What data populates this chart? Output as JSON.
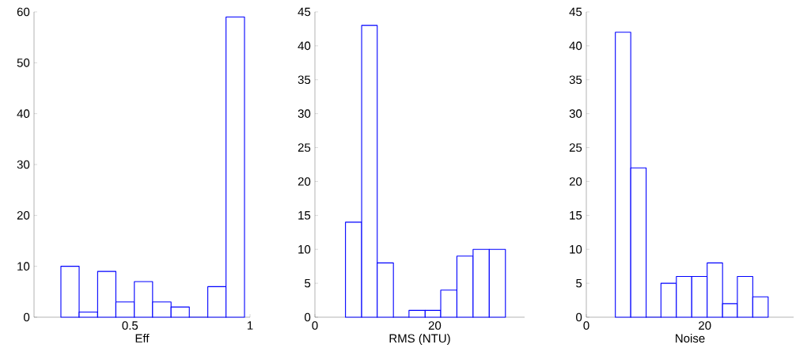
{
  "chart_data": [
    {
      "type": "histogram",
      "xlabel": "Eff",
      "color": "#0000ff",
      "bins": [
        0.212,
        0.288,
        0.365,
        0.441,
        0.518,
        0.594,
        0.671,
        0.747,
        0.824,
        0.9,
        0.977
      ],
      "values": [
        10,
        1,
        9,
        3,
        7,
        3,
        2,
        0,
        6,
        59
      ],
      "xlim": [
        0.1,
        1
      ],
      "xticks": [
        0.5,
        1
      ],
      "ylim": [
        0,
        60
      ],
      "yticks": [
        0,
        10,
        20,
        30,
        40,
        50,
        60
      ]
    },
    {
      "type": "histogram",
      "xlabel": "RMS (NTU)",
      "color": "#0000ff",
      "bins": [
        5.1,
        7.8,
        10.4,
        13.1,
        15.7,
        18.4,
        21.0,
        23.7,
        26.4,
        29.1,
        31.8
      ],
      "values": [
        14,
        43,
        8,
        0,
        1,
        1,
        4,
        9,
        10,
        10
      ],
      "xlim": [
        0,
        35
      ],
      "xticks": [
        0,
        20
      ],
      "ylim": [
        0,
        45
      ],
      "yticks": [
        0,
        5,
        10,
        15,
        20,
        25,
        30,
        35,
        40,
        45
      ]
    },
    {
      "type": "histogram",
      "xlabel": "Noise",
      "color": "#0000ff",
      "bins": [
        4.9,
        7.5,
        10.1,
        12.6,
        15.2,
        17.8,
        20.4,
        23.0,
        25.5,
        28.1,
        30.7
      ],
      "values": [
        42,
        22,
        0,
        5,
        6,
        6,
        8,
        2,
        6,
        3
      ],
      "xlim": [
        0,
        35
      ],
      "xticks": [
        0,
        20
      ],
      "ylim": [
        0,
        45
      ],
      "yticks": [
        0,
        5,
        10,
        15,
        20,
        25,
        30,
        35,
        40,
        45
      ]
    }
  ]
}
